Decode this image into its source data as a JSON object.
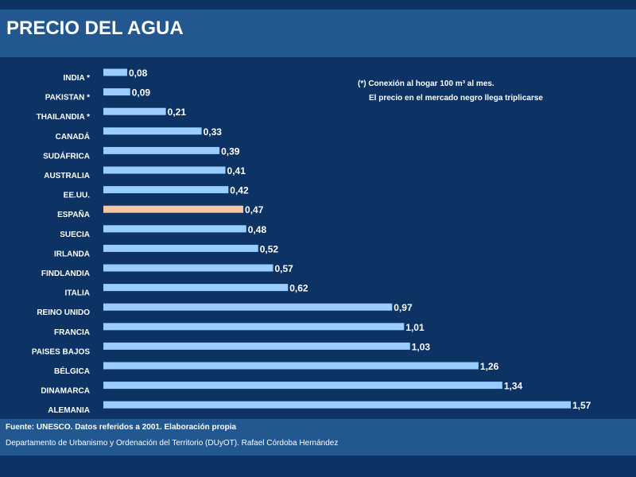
{
  "header": {
    "title": "PRECIO DEL AGUA"
  },
  "note": {
    "line1": "(*) Conexión al hogar 100 m³ al mes.",
    "line2": "El precio en el mercado negro llega triplicarse"
  },
  "footer": {
    "source": "Fuente: UNESCO. Datos referidos a 2001. Elaboración propia",
    "department": "Departamento de Urbanismo y Ordenación del Territorio (DUyOT). Rafael Córdoba Hernández"
  },
  "colors": {
    "bar": "#99ccff",
    "highlight": "#f5c9a0",
    "background": "#0d3365",
    "band": "#23578f"
  },
  "chart_data": {
    "type": "bar",
    "orientation": "horizontal",
    "title": "PRECIO DEL AGUA",
    "categories": [
      "INDIA *",
      "PAKISTAN *",
      "THAILANDIA *",
      "CANADÁ",
      "SUDÁFRICA",
      "AUSTRALIA",
      "EE.UU.",
      "ESPAÑA",
      "SUECIA",
      "IRLANDA",
      "FINDLANDIA",
      "ITALIA",
      "REINO UNIDO",
      "FRANCIA",
      "PAISES BAJOS",
      "BÉLGICA",
      "DINAMARCA",
      "ALEMANIA"
    ],
    "values": [
      0.08,
      0.09,
      0.21,
      0.33,
      0.39,
      0.41,
      0.42,
      0.47,
      0.48,
      0.52,
      0.57,
      0.62,
      0.97,
      1.01,
      1.03,
      1.26,
      1.34,
      1.57
    ],
    "value_labels": [
      "0,08",
      "0,09",
      "0,21",
      "0,33",
      "0,39",
      "0,41",
      "0,42",
      "0,47",
      "0,48",
      "0,52",
      "0,57",
      "0,62",
      "0,97",
      "1,01",
      "1,03",
      "1,26",
      "1,34",
      "1,57"
    ],
    "highlight_category": "ESPAÑA",
    "xlim": [
      0,
      1.57
    ],
    "grid": false,
    "xlabel": "",
    "ylabel": ""
  }
}
